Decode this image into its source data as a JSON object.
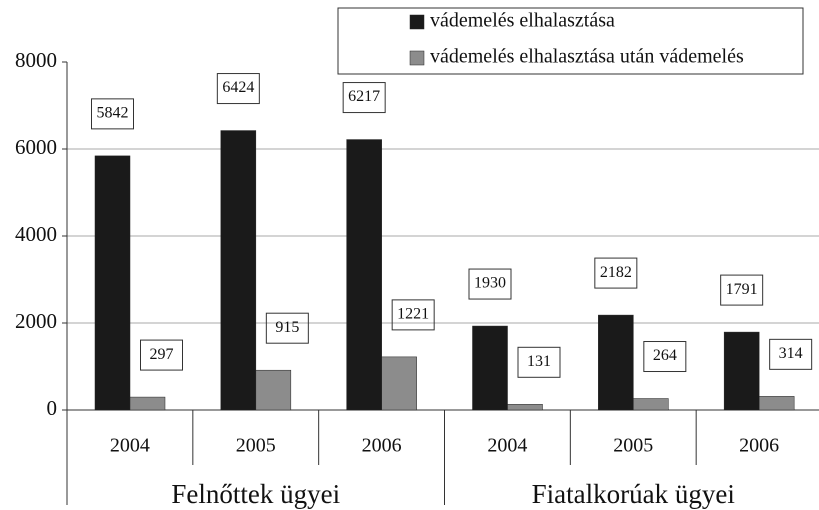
{
  "chart_data": {
    "type": "bar",
    "groups": [
      {
        "name": "Felnőttek ügyei",
        "categories": [
          "2004",
          "2005",
          "2006"
        ]
      },
      {
        "name": "Fiatalkorúak ügyei",
        "categories": [
          "2004",
          "2005",
          "2006"
        ]
      }
    ],
    "series": [
      {
        "name": "vádemelés elhalasztása",
        "color": "#1a1a1a",
        "values": [
          5842,
          6424,
          6217,
          1930,
          2182,
          1791
        ]
      },
      {
        "name": "vádemelés elhalasztása után vádemelés",
        "color": "#8c8c8c",
        "values": [
          297,
          915,
          1221,
          131,
          264,
          314
        ]
      }
    ],
    "ylim": [
      0,
      8000
    ],
    "yticks": [
      0,
      2000,
      4000,
      6000,
      8000
    ],
    "grid": true,
    "legend": "top-right"
  }
}
